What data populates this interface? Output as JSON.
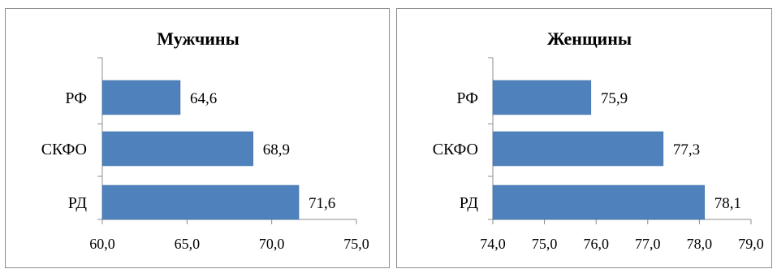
{
  "chart_data": [
    {
      "type": "bar",
      "orientation": "horizontal",
      "title": "Мужчины",
      "categories": [
        "РФ",
        "СКФО",
        "РД"
      ],
      "values": [
        64.6,
        68.9,
        71.6
      ],
      "value_labels": [
        "64,6",
        "68,9",
        "71,6"
      ],
      "xlim": [
        60.0,
        75.0
      ],
      "xticks": [
        60.0,
        65.0,
        70.0,
        75.0
      ],
      "xtick_labels": [
        "60,0",
        "65,0",
        "70,0",
        "75,0"
      ],
      "bar_color": "#4F81BD",
      "xlabel": "",
      "ylabel": "",
      "grid": false,
      "legend": "none"
    },
    {
      "type": "bar",
      "orientation": "horizontal",
      "title": "Женщины",
      "categories": [
        "РФ",
        "СКФО",
        "РД"
      ],
      "values": [
        75.9,
        77.3,
        78.1
      ],
      "value_labels": [
        "75,9",
        "77,3",
        "78,1"
      ],
      "xlim": [
        74.0,
        79.0
      ],
      "xticks": [
        74.0,
        75.0,
        76.0,
        77.0,
        78.0,
        79.0
      ],
      "xtick_labels": [
        "74,0",
        "75,0",
        "76,0",
        "77,0",
        "78,0",
        "79,0"
      ],
      "bar_color": "#4F81BD",
      "xlabel": "",
      "ylabel": "",
      "grid": false,
      "legend": "none"
    }
  ]
}
